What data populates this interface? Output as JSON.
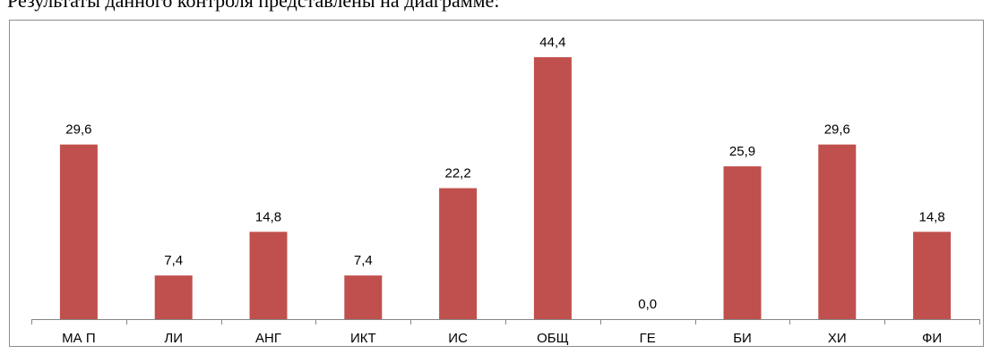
{
  "page": {
    "caption": "Результаты данного контроля представлены на диаграмме:"
  },
  "chart_data": {
    "type": "bar",
    "categories": [
      "МА П",
      "ЛИ",
      "АНГ",
      "ИКТ",
      "ИС",
      "ОБЩ",
      "ГЕ",
      "БИ",
      "ХИ",
      "ФИ"
    ],
    "values": [
      29.6,
      7.4,
      14.8,
      7.4,
      22.2,
      44.4,
      0.0,
      25.9,
      29.6,
      14.8
    ],
    "data_labels": [
      "29,6",
      "7,4",
      "14,8",
      "7,4",
      "22,2",
      "44,4",
      "0,0",
      "25,9",
      "29,6",
      "14,8"
    ],
    "bar_color": "#c0504d",
    "axis_color": "#868686",
    "title": "",
    "xlabel": "",
    "ylabel": "",
    "ylim": [
      0,
      50
    ],
    "grid": false,
    "legend": "none"
  }
}
